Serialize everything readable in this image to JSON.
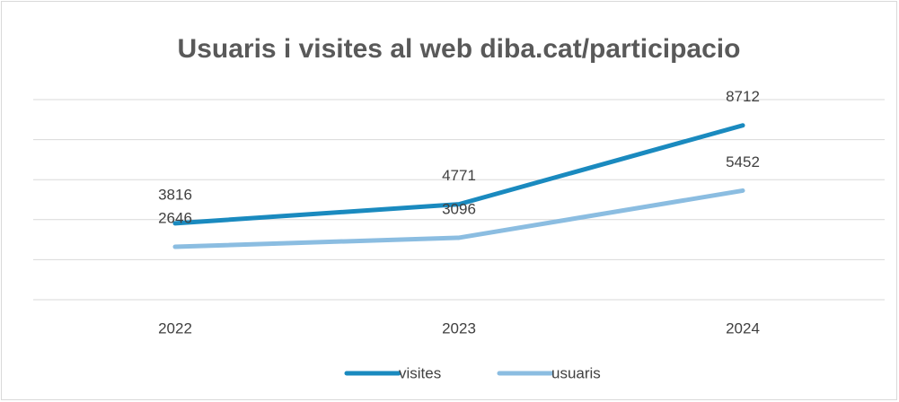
{
  "chart_data": {
    "type": "line",
    "title": "Usuaris i visites al web diba.cat/participacio",
    "categories": [
      "2022",
      "2023",
      "2024"
    ],
    "series": [
      {
        "name": "visites",
        "color": "#1a8abf",
        "values": [
          3816,
          4771,
          8712
        ]
      },
      {
        "name": "usuaris",
        "color": "#8bbde1",
        "values": [
          2646,
          3096,
          5452
        ]
      }
    ],
    "ylim": [
      0,
      10000
    ],
    "yticks": [
      0,
      2000,
      4000,
      6000,
      8000,
      10000
    ],
    "grid": true,
    "legend": "bottom"
  }
}
